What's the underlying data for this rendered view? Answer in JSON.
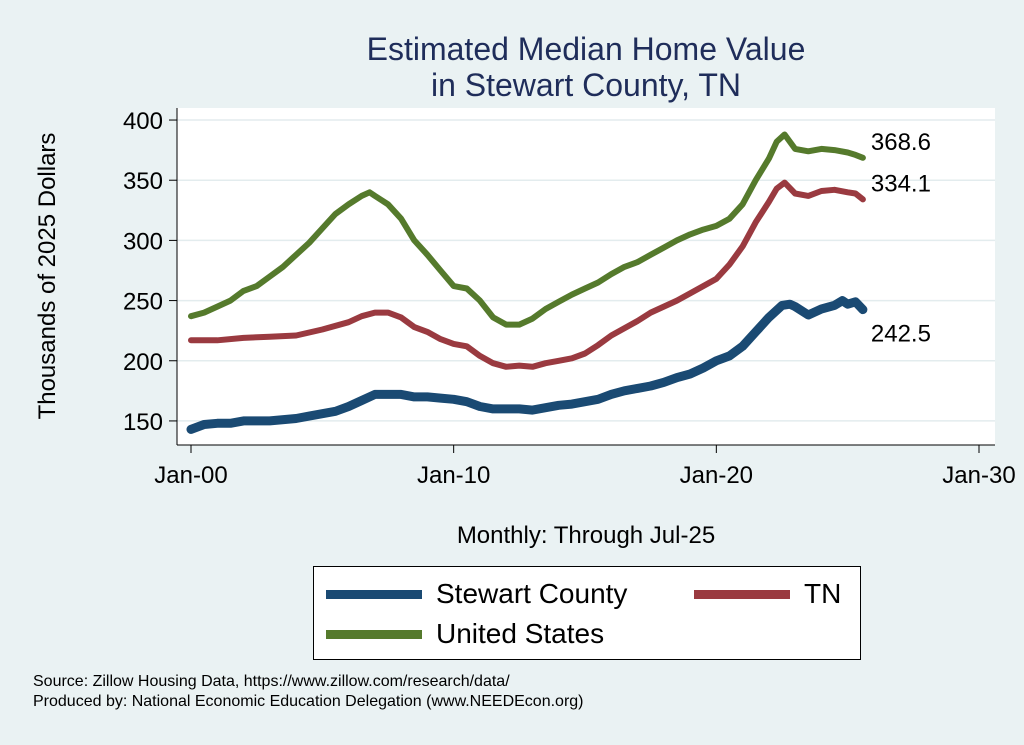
{
  "chart_data": {
    "type": "line",
    "title": [
      "Estimated Median Home Value",
      "in Stewart County, TN"
    ],
    "xlabel": "Monthly: Through Jul-25",
    "ylabel": "Thousands of 2025 Dollars",
    "xlim": [
      2000,
      2030
    ],
    "ylim": [
      130,
      410
    ],
    "x_ticks": [
      {
        "value": 2000,
        "label": "Jan-00"
      },
      {
        "value": 2010,
        "label": "Jan-10"
      },
      {
        "value": 2020,
        "label": "Jan-20"
      },
      {
        "value": 2030,
        "label": "Jan-30"
      }
    ],
    "y_ticks": [
      150,
      200,
      250,
      300,
      350,
      400
    ],
    "grid": true,
    "legend": "bottom",
    "series": [
      {
        "name": "Stewart County",
        "color": "#1a4a73",
        "end_label": "242.5",
        "points": [
          [
            2000.0,
            143
          ],
          [
            2000.5,
            147
          ],
          [
            2001.0,
            148
          ],
          [
            2001.5,
            148
          ],
          [
            2002.0,
            150
          ],
          [
            2003.0,
            150
          ],
          [
            2004.0,
            152
          ],
          [
            2004.5,
            154
          ],
          [
            2005.0,
            156
          ],
          [
            2005.5,
            158
          ],
          [
            2006.0,
            162
          ],
          [
            2006.5,
            167
          ],
          [
            2007.0,
            172
          ],
          [
            2007.5,
            172
          ],
          [
            2008.0,
            172
          ],
          [
            2008.5,
            170
          ],
          [
            2009.0,
            170
          ],
          [
            2009.5,
            169
          ],
          [
            2010.0,
            168
          ],
          [
            2010.5,
            166
          ],
          [
            2011.0,
            162
          ],
          [
            2011.5,
            160
          ],
          [
            2012.0,
            160
          ],
          [
            2012.5,
            160
          ],
          [
            2013.0,
            159
          ],
          [
            2013.5,
            161
          ],
          [
            2014.0,
            163
          ],
          [
            2014.5,
            164
          ],
          [
            2015.0,
            166
          ],
          [
            2015.5,
            168
          ],
          [
            2016.0,
            172
          ],
          [
            2016.5,
            175
          ],
          [
            2017.0,
            177
          ],
          [
            2017.5,
            179
          ],
          [
            2018.0,
            182
          ],
          [
            2018.5,
            186
          ],
          [
            2019.0,
            189
          ],
          [
            2019.5,
            194
          ],
          [
            2020.0,
            200
          ],
          [
            2020.5,
            204
          ],
          [
            2021.0,
            212
          ],
          [
            2021.5,
            224
          ],
          [
            2022.0,
            236
          ],
          [
            2022.5,
            246
          ],
          [
            2022.8,
            247
          ],
          [
            2023.0,
            245
          ],
          [
            2023.5,
            238
          ],
          [
            2024.0,
            243
          ],
          [
            2024.5,
            246
          ],
          [
            2024.8,
            250
          ],
          [
            2025.0,
            247
          ],
          [
            2025.3,
            249
          ],
          [
            2025.58,
            242.5
          ]
        ]
      },
      {
        "name": "TN",
        "color": "#9a3a40",
        "end_label": "334.1",
        "points": [
          [
            2000.0,
            217
          ],
          [
            2001.0,
            217
          ],
          [
            2002.0,
            219
          ],
          [
            2003.0,
            220
          ],
          [
            2004.0,
            221
          ],
          [
            2005.0,
            226
          ],
          [
            2006.0,
            232
          ],
          [
            2006.5,
            237
          ],
          [
            2007.0,
            240
          ],
          [
            2007.5,
            240
          ],
          [
            2008.0,
            236
          ],
          [
            2008.5,
            228
          ],
          [
            2009.0,
            224
          ],
          [
            2009.5,
            218
          ],
          [
            2010.0,
            214
          ],
          [
            2010.5,
            212
          ],
          [
            2011.0,
            204
          ],
          [
            2011.5,
            198
          ],
          [
            2012.0,
            195
          ],
          [
            2012.5,
            196
          ],
          [
            2013.0,
            195
          ],
          [
            2013.5,
            198
          ],
          [
            2014.0,
            200
          ],
          [
            2014.5,
            202
          ],
          [
            2015.0,
            206
          ],
          [
            2015.5,
            213
          ],
          [
            2016.0,
            221
          ],
          [
            2016.5,
            227
          ],
          [
            2017.0,
            233
          ],
          [
            2017.5,
            240
          ],
          [
            2018.0,
            245
          ],
          [
            2018.5,
            250
          ],
          [
            2019.0,
            256
          ],
          [
            2019.5,
            262
          ],
          [
            2020.0,
            268
          ],
          [
            2020.5,
            280
          ],
          [
            2021.0,
            295
          ],
          [
            2021.5,
            315
          ],
          [
            2022.0,
            332
          ],
          [
            2022.3,
            343
          ],
          [
            2022.6,
            348
          ],
          [
            2023.0,
            339
          ],
          [
            2023.5,
            337
          ],
          [
            2024.0,
            341
          ],
          [
            2024.5,
            342
          ],
          [
            2025.0,
            340
          ],
          [
            2025.3,
            339
          ],
          [
            2025.58,
            334.1
          ]
        ]
      },
      {
        "name": "United States",
        "color": "#557a2c",
        "end_label": "368.6",
        "points": [
          [
            2000.0,
            237
          ],
          [
            2000.5,
            240
          ],
          [
            2001.0,
            245
          ],
          [
            2001.5,
            250
          ],
          [
            2002.0,
            258
          ],
          [
            2002.5,
            262
          ],
          [
            2003.0,
            270
          ],
          [
            2003.5,
            278
          ],
          [
            2004.0,
            288
          ],
          [
            2004.5,
            298
          ],
          [
            2005.0,
            310
          ],
          [
            2005.5,
            322
          ],
          [
            2006.0,
            330
          ],
          [
            2006.5,
            337
          ],
          [
            2006.8,
            340
          ],
          [
            2007.0,
            337
          ],
          [
            2007.5,
            330
          ],
          [
            2008.0,
            318
          ],
          [
            2008.5,
            300
          ],
          [
            2009.0,
            288
          ],
          [
            2009.5,
            275
          ],
          [
            2010.0,
            262
          ],
          [
            2010.5,
            260
          ],
          [
            2011.0,
            250
          ],
          [
            2011.5,
            236
          ],
          [
            2012.0,
            230
          ],
          [
            2012.5,
            230
          ],
          [
            2013.0,
            235
          ],
          [
            2013.5,
            243
          ],
          [
            2014.0,
            249
          ],
          [
            2014.5,
            255
          ],
          [
            2015.0,
            260
          ],
          [
            2015.5,
            265
          ],
          [
            2016.0,
            272
          ],
          [
            2016.5,
            278
          ],
          [
            2017.0,
            282
          ],
          [
            2017.5,
            288
          ],
          [
            2018.0,
            294
          ],
          [
            2018.5,
            300
          ],
          [
            2019.0,
            305
          ],
          [
            2019.5,
            309
          ],
          [
            2020.0,
            312
          ],
          [
            2020.5,
            318
          ],
          [
            2021.0,
            330
          ],
          [
            2021.5,
            350
          ],
          [
            2022.0,
            368
          ],
          [
            2022.3,
            382
          ],
          [
            2022.6,
            388
          ],
          [
            2023.0,
            376
          ],
          [
            2023.5,
            374
          ],
          [
            2024.0,
            376
          ],
          [
            2024.5,
            375
          ],
          [
            2025.0,
            373
          ],
          [
            2025.3,
            371
          ],
          [
            2025.58,
            368.6
          ]
        ]
      }
    ]
  },
  "source": "Source: Zillow Housing Data, https://www.zillow.com/research/data/",
  "produced_by": "Produced by: National Economic Education Delegation (www.NEEDEcon.org)"
}
